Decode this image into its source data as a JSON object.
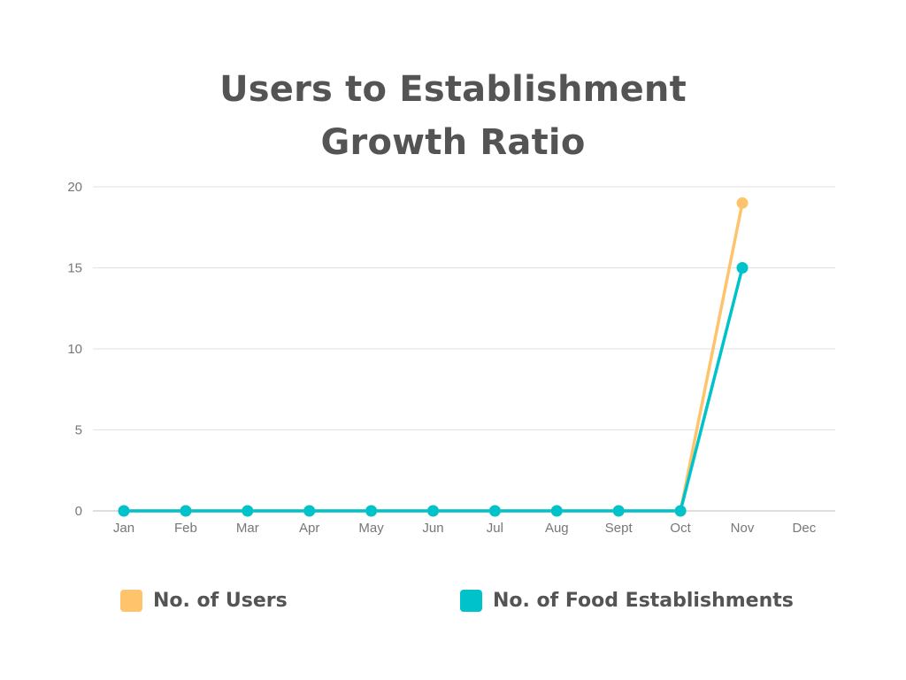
{
  "chart_data": {
    "type": "line",
    "title_lines": [
      "Users to Establishment",
      "Growth Ratio"
    ],
    "categories": [
      "Jan",
      "Feb",
      "Mar",
      "Apr",
      "May",
      "Jun",
      "Jul",
      "Aug",
      "Sept",
      "Oct",
      "Nov",
      "Dec"
    ],
    "series": [
      {
        "name": "No. of Users",
        "color": "#FFC46B",
        "values": [
          0,
          0,
          0,
          0,
          0,
          0,
          0,
          0,
          0,
          0,
          19,
          null
        ]
      },
      {
        "name": "No. of Food Establishments",
        "color": "#00C2CB",
        "values": [
          0,
          0,
          0,
          0,
          0,
          0,
          0,
          0,
          0,
          0,
          15,
          null
        ]
      }
    ],
    "yticks": [
      0,
      5,
      10,
      15,
      20
    ],
    "ylim": [
      0,
      20
    ],
    "xlabel": "",
    "ylabel": "",
    "grid": true,
    "legend_position": "bottom"
  }
}
